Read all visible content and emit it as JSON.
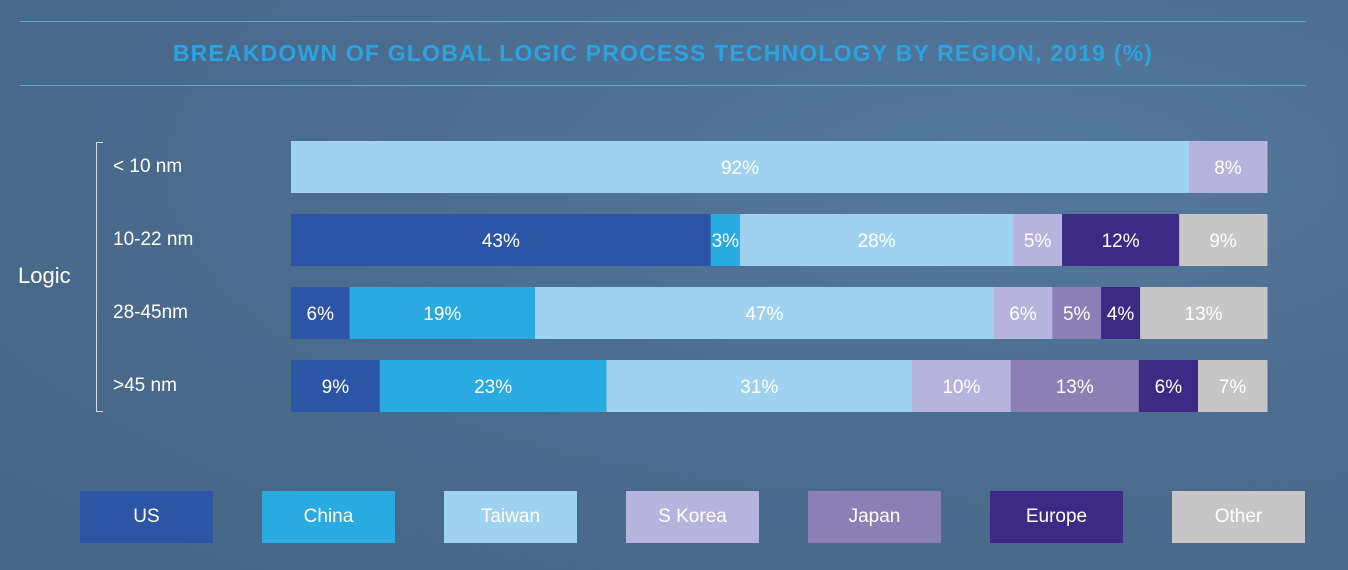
{
  "header": {
    "title": "BREAKDOWN OF GLOBAL LOGIC PROCESS TECHNOLOGY BY REGION, 2019 (%)"
  },
  "group_label": "Logic",
  "colors": {
    "US": "#2c55a6",
    "China": "#29abe2",
    "Taiwan": "#9fd2f0",
    "S Korea": "#b6b4dc",
    "Japan": "#8c7fb6",
    "Europe": "#3d2a85",
    "Other": "#c6c6c7"
  },
  "chart_data": {
    "type": "bar",
    "orientation": "horizontal",
    "stacked": true,
    "title": "BREAKDOWN OF GLOBAL LOGIC PROCESS TECHNOLOGY BY REGION, 2019 (%)",
    "group": "Logic",
    "legend_position": "bottom",
    "categories": [
      "< 10 nm",
      "10-22 nm",
      "28-45nm",
      ">45 nm"
    ],
    "series": [
      {
        "name": "US",
        "values": [
          0,
          43,
          6,
          9
        ],
        "labels": [
          "",
          "43%",
          "6%",
          "9%"
        ]
      },
      {
        "name": "China",
        "values": [
          0,
          3,
          19,
          23
        ],
        "labels": [
          "",
          "3%",
          "19%",
          "23%"
        ]
      },
      {
        "name": "Taiwan",
        "values": [
          92,
          28,
          47,
          31
        ],
        "labels": [
          "92%",
          "28%",
          "47%",
          "31%"
        ]
      },
      {
        "name": "S Korea",
        "values": [
          8,
          5,
          6,
          10
        ],
        "labels": [
          "8%",
          "5%",
          "6%",
          "10%"
        ]
      },
      {
        "name": "Japan",
        "values": [
          0,
          0,
          5,
          13
        ],
        "labels": [
          "",
          "",
          "5%",
          "13%"
        ]
      },
      {
        "name": "Europe",
        "values": [
          0,
          12,
          4,
          6
        ],
        "labels": [
          "",
          "12%",
          "4%",
          "6%"
        ]
      },
      {
        "name": "Other",
        "values": [
          0,
          9,
          13,
          7
        ],
        "labels": [
          "",
          "9%",
          "13%",
          "7%"
        ]
      }
    ]
  }
}
